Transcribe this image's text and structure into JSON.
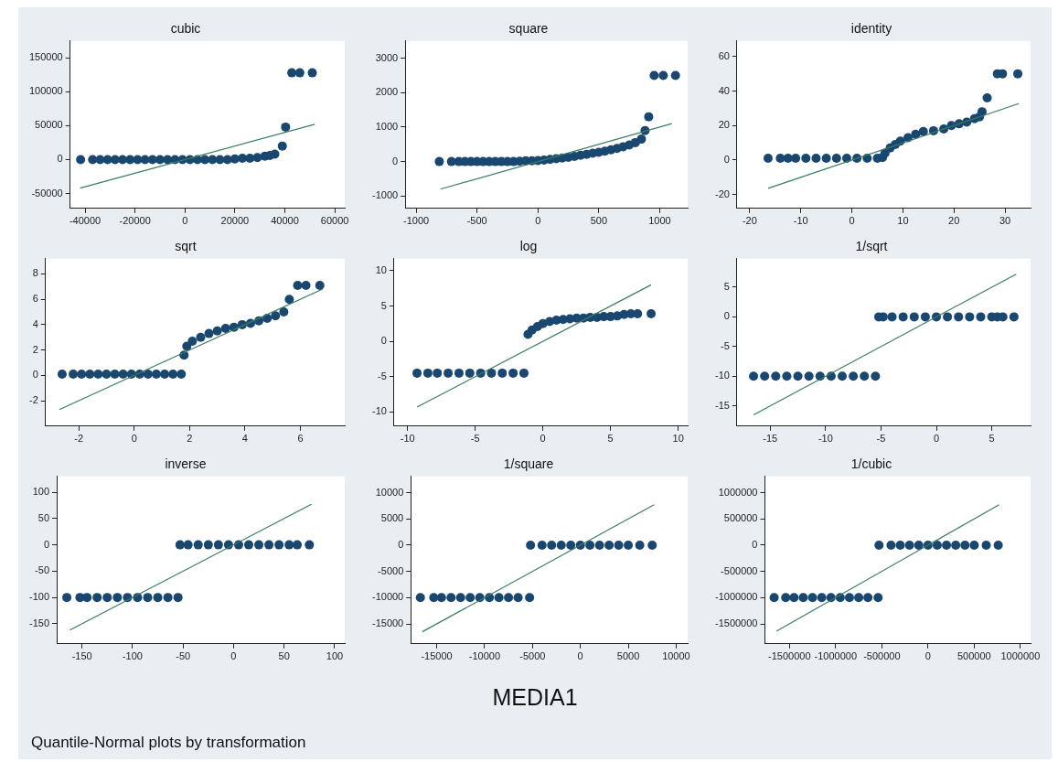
{
  "chart_data": [
    {
      "type": "scatter",
      "title": "cubic",
      "marker": "circle",
      "xlim": [
        -46000,
        64000
      ],
      "xticks": [
        -40000,
        -20000,
        0,
        20000,
        40000,
        60000
      ],
      "ylim": [
        -72000,
        175000
      ],
      "yticks": [
        -50000,
        0,
        50000,
        100000,
        150000
      ],
      "series": [
        {
          "type": "scatter",
          "color": "#1a476f",
          "x": [
            -41800,
            -37000,
            -34000,
            -31000,
            -28000,
            -25000,
            -22000,
            -19000,
            -16000,
            -13000,
            -10000,
            -7000,
            -4000,
            -1000,
            2000,
            5000,
            8000,
            11000,
            14000,
            17000,
            20000,
            23000,
            26000,
            29000,
            32000,
            34000,
            36000,
            39000,
            40300,
            42800,
            46000,
            51000
          ],
          "values": [
            0,
            0,
            0,
            0,
            0,
            0,
            0,
            0,
            0,
            0,
            0,
            0,
            0,
            0,
            0,
            0,
            0,
            0,
            0,
            0,
            1000,
            2000,
            2000,
            3000,
            5000,
            6000,
            8000,
            20000,
            48000,
            128000,
            128000,
            128000
          ]
        },
        {
          "type": "line",
          "marker": "none",
          "color": "#3a7d5f",
          "x": [
            -42000,
            52000
          ],
          "values": [
            -42000,
            52000
          ]
        }
      ]
    },
    {
      "type": "scatter",
      "title": "square",
      "marker": "circle",
      "xlim": [
        -1090,
        1230
      ],
      "xticks": [
        -1000,
        -500,
        0,
        500,
        1000
      ],
      "ylim": [
        -1360,
        3500
      ],
      "yticks": [
        -1000,
        0,
        1000,
        2000,
        3000
      ],
      "series": [
        {
          "type": "scatter",
          "color": "#1a476f",
          "x": [
            -810,
            -710,
            -650,
            -600,
            -550,
            -500,
            -450,
            -400,
            -350,
            -300,
            -250,
            -200,
            -150,
            -100,
            -50,
            0,
            50,
            100,
            150,
            200,
            250,
            300,
            350,
            400,
            450,
            500,
            550,
            600,
            650,
            700,
            750,
            800,
            850,
            880,
            910,
            955,
            1030,
            1130
          ],
          "values": [
            0,
            0,
            0,
            0,
            0,
            0,
            0,
            0,
            0,
            0,
            0,
            0,
            10,
            20,
            20,
            30,
            40,
            60,
            80,
            100,
            120,
            150,
            180,
            210,
            240,
            270,
            300,
            340,
            380,
            430,
            480,
            550,
            650,
            900,
            1300,
            2500,
            2500,
            2500
          ]
        },
        {
          "type": "line",
          "marker": "none",
          "color": "#3a7d5f",
          "x": [
            -800,
            1100
          ],
          "values": [
            -800,
            1100
          ]
        }
      ]
    },
    {
      "type": "scatter",
      "title": "identity",
      "marker": "circle",
      "xlim": [
        -22.5,
        35
      ],
      "xticks": [
        -20,
        -10,
        0,
        10,
        20,
        30
      ],
      "ylim": [
        -28,
        69
      ],
      "yticks": [
        -20,
        0,
        20,
        40,
        60
      ],
      "series": [
        {
          "type": "scatter",
          "color": "#1a476f",
          "x": [
            -16.4,
            -14,
            -12.5,
            -11,
            -9,
            -7,
            -5,
            -3,
            -1,
            1,
            3,
            5,
            6,
            6.5,
            7.5,
            8.5,
            9.5,
            11,
            12.5,
            14,
            16,
            18,
            19.5,
            21,
            22.5,
            24,
            25,
            25.5,
            26.5,
            28.5,
            29.5,
            32.5
          ],
          "values": [
            1,
            1,
            1,
            1,
            1,
            1,
            1,
            1,
            1,
            1,
            1,
            1,
            1.5,
            4,
            7,
            9,
            11,
            13,
            15,
            16.5,
            17,
            18,
            20,
            21,
            22,
            24,
            25,
            28,
            36,
            50,
            50,
            50
          ]
        },
        {
          "type": "line",
          "marker": "none",
          "color": "#3a7d5f",
          "x": [
            -16.4,
            32.7
          ],
          "values": [
            -16.4,
            32.7
          ]
        }
      ]
    },
    {
      "type": "scatter",
      "title": "sqrt",
      "marker": "circle",
      "xlim": [
        -3.2,
        7.6
      ],
      "xticks": [
        -2,
        0,
        2,
        4,
        6
      ],
      "ylim": [
        -4,
        9.2
      ],
      "yticks": [
        -2,
        0,
        2,
        4,
        6,
        8
      ],
      "series": [
        {
          "type": "scatter",
          "color": "#1a476f",
          "x": [
            -2.6,
            -2.2,
            -1.9,
            -1.6,
            -1.3,
            -1,
            -0.7,
            -0.4,
            -0.1,
            0.2,
            0.5,
            0.8,
            1.1,
            1.4,
            1.7,
            1.8,
            1.9,
            2.1,
            2.4,
            2.7,
            3,
            3.3,
            3.6,
            3.9,
            4.2,
            4.5,
            4.8,
            5.1,
            5.4,
            5.6,
            5.9,
            6.2,
            6.7
          ],
          "values": [
            0.1,
            0.1,
            0.1,
            0.1,
            0.1,
            0.1,
            0.1,
            0.1,
            0.1,
            0.1,
            0.1,
            0.1,
            0.1,
            0.1,
            0.1,
            1.6,
            2.3,
            2.7,
            3,
            3.3,
            3.5,
            3.7,
            3.8,
            4,
            4.1,
            4.3,
            4.5,
            4.7,
            5,
            6,
            7.1,
            7.1,
            7.1
          ]
        },
        {
          "type": "line",
          "marker": "none",
          "color": "#3a7d5f",
          "x": [
            -2.7,
            6.8
          ],
          "values": [
            -2.7,
            6.8
          ]
        }
      ]
    },
    {
      "type": "scatter",
      "title": "log",
      "marker": "circle",
      "xlim": [
        -11,
        10.7
      ],
      "xticks": [
        -10,
        -5,
        0,
        5,
        10
      ],
      "ylim": [
        -12,
        11.7
      ],
      "yticks": [
        -10,
        -5,
        0,
        5,
        10
      ],
      "series": [
        {
          "type": "scatter",
          "color": "#1a476f",
          "x": [
            -9.3,
            -8.5,
            -7.8,
            -7,
            -6.2,
            -5.4,
            -4.6,
            -3.8,
            -3,
            -2.2,
            -1.4,
            -1.1,
            -0.8,
            -0.4,
            0,
            0.5,
            1,
            1.5,
            2,
            2.5,
            3,
            3.5,
            4,
            4.5,
            5,
            5.5,
            6,
            6.5,
            7,
            8
          ],
          "values": [
            -4.5,
            -4.5,
            -4.5,
            -4.5,
            -4.5,
            -4.5,
            -4.5,
            -4.5,
            -4.5,
            -4.5,
            -4.5,
            1,
            1.6,
            2.1,
            2.5,
            2.8,
            3,
            3.1,
            3.2,
            3.3,
            3.3,
            3.4,
            3.4,
            3.5,
            3.5,
            3.6,
            3.8,
            3.9,
            3.9,
            3.9
          ]
        },
        {
          "type": "line",
          "marker": "none",
          "color": "#3a7d5f",
          "x": [
            -9.3,
            8
          ],
          "values": [
            -9.3,
            8
          ]
        }
      ]
    },
    {
      "type": "scatter",
      "title": "1/sqrt",
      "marker": "circle",
      "xlim": [
        -18,
        8.5
      ],
      "xticks": [
        -15,
        -10,
        -5,
        0,
        5
      ],
      "ylim": [
        -18.4,
        9.8
      ],
      "yticks": [
        -15,
        -10,
        -5,
        0,
        5
      ],
      "series": [
        {
          "type": "scatter",
          "color": "#1a476f",
          "x": [
            -16.5,
            -15.5,
            -14.5,
            -13.5,
            -12.5,
            -11.5,
            -10.5,
            -9.5,
            -8.5,
            -7.5,
            -6.5,
            -5.5,
            -5.2,
            -4.8,
            -4,
            -3,
            -2,
            -1,
            0,
            1,
            2,
            3,
            4,
            5,
            5.5,
            6,
            7
          ],
          "values": [
            -10,
            -10,
            -10,
            -10,
            -10,
            -10,
            -10,
            -10,
            -10,
            -10,
            -10,
            -10,
            0,
            0,
            0,
            0,
            0,
            0,
            0,
            0,
            0,
            0,
            0,
            0,
            0,
            0,
            0
          ]
        },
        {
          "type": "line",
          "marker": "none",
          "color": "#3a7d5f",
          "x": [
            -16.5,
            7.2
          ],
          "values": [
            -16.5,
            7.2
          ]
        }
      ]
    },
    {
      "type": "scatter",
      "title": "inverse",
      "marker": "circle",
      "xlim": [
        -175,
        110
      ],
      "xticks": [
        -150,
        -100,
        -50,
        0,
        50,
        100
      ],
      "ylim": [
        -188,
        130
      ],
      "yticks": [
        -150,
        -100,
        -50,
        0,
        50,
        100
      ],
      "series": [
        {
          "type": "scatter",
          "color": "#1a476f",
          "x": [
            -165,
            -152,
            -145,
            -135,
            -125,
            -115,
            -105,
            -95,
            -85,
            -75,
            -65,
            -55,
            -53,
            -45,
            -35,
            -25,
            -15,
            -5,
            5,
            15,
            25,
            35,
            45,
            55,
            63,
            75
          ],
          "values": [
            -100,
            -100,
            -100,
            -100,
            -100,
            -100,
            -100,
            -100,
            -100,
            -100,
            -100,
            -100,
            0,
            0,
            0,
            0,
            0,
            0,
            0,
            0,
            0,
            0,
            0,
            0,
            0,
            0
          ]
        },
        {
          "type": "line",
          "marker": "none",
          "color": "#3a7d5f",
          "x": [
            -162,
            77
          ],
          "values": [
            -162,
            77
          ]
        }
      ]
    },
    {
      "type": "scatter",
      "title": "1/square",
      "marker": "circle",
      "xlim": [
        -17700,
        11200
      ],
      "xticks": [
        -15000,
        -10000,
        -5000,
        0,
        5000,
        10000
      ],
      "ylim": [
        -18800,
        13100
      ],
      "yticks": [
        -15000,
        -10000,
        -5000,
        0,
        5000,
        10000
      ],
      "series": [
        {
          "type": "scatter",
          "color": "#1a476f",
          "x": [
            -16700,
            -15300,
            -14500,
            -13500,
            -12500,
            -11500,
            -10500,
            -9500,
            -8500,
            -7500,
            -6500,
            -5300,
            -5200,
            -4000,
            -3000,
            -2000,
            -1000,
            0,
            1000,
            2000,
            3000,
            4000,
            5000,
            6200,
            7500
          ],
          "values": [
            -10000,
            -10000,
            -10000,
            -10000,
            -10000,
            -10000,
            -10000,
            -10000,
            -10000,
            -10000,
            -10000,
            -10000,
            0,
            0,
            0,
            0,
            0,
            0,
            0,
            0,
            0,
            0,
            0,
            0,
            0
          ]
        },
        {
          "type": "line",
          "marker": "none",
          "color": "#3a7d5f",
          "x": [
            -16500,
            7700
          ],
          "values": [
            -16500,
            7700
          ]
        }
      ]
    },
    {
      "type": "scatter",
      "title": "1/cubic",
      "marker": "circle",
      "xlim": [
        -1765000,
        1110000
      ],
      "xticks": [
        -1500000,
        -1000000,
        -500000,
        0,
        500000,
        1000000
      ],
      "ylim": [
        -1880000,
        1310000
      ],
      "yticks": [
        -1500000,
        -1000000,
        -500000,
        0,
        500000,
        1000000
      ],
      "series": [
        {
          "type": "scatter",
          "color": "#1a476f",
          "x": [
            -1665000,
            -1540000,
            -1450000,
            -1350000,
            -1250000,
            -1150000,
            -1050000,
            -950000,
            -850000,
            -750000,
            -650000,
            -540000,
            -530000,
            -400000,
            -300000,
            -200000,
            -100000,
            0,
            100000,
            200000,
            300000,
            400000,
            500000,
            630000,
            760000
          ],
          "values": [
            -1000000,
            -1000000,
            -1000000,
            -1000000,
            -1000000,
            -1000000,
            -1000000,
            -1000000,
            -1000000,
            -1000000,
            -1000000,
            -1000000,
            0,
            0,
            0,
            0,
            0,
            0,
            0,
            0,
            0,
            0,
            0,
            0,
            0
          ]
        },
        {
          "type": "line",
          "marker": "none",
          "color": "#3a7d5f",
          "x": [
            -1640000,
            770000
          ],
          "values": [
            -1640000,
            770000
          ]
        }
      ]
    },
    {
      "type": "other",
      "title": "MEDIA1",
      "annotations": [
        "Quantile-Normal plots by transformation"
      ]
    }
  ]
}
